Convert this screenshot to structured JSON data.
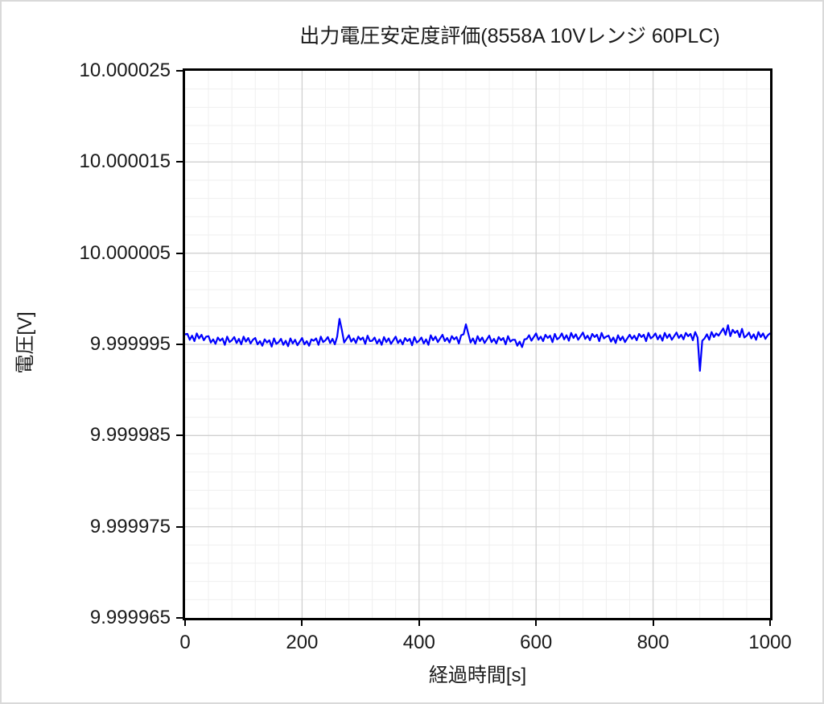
{
  "chart_data": {
    "type": "line",
    "title": "出力電圧安定度評価(8558A 10Vレンジ 60PLC)",
    "xlabel": "経過時間[s]",
    "ylabel": "電圧[V]",
    "xlim_s": [
      0,
      1000
    ],
    "ylim_uV": [
      -35,
      25
    ],
    "ylim_volts": [
      9.999965,
      10.000025
    ],
    "x_ticks": [
      {
        "s": 0,
        "label": "0"
      },
      {
        "s": 200,
        "label": "200"
      },
      {
        "s": 400,
        "label": "400"
      },
      {
        "s": 600,
        "label": "600"
      },
      {
        "s": 800,
        "label": "800"
      },
      {
        "s": 1000,
        "label": "1000"
      }
    ],
    "y_ticks": [
      {
        "uV": 25,
        "label": "10.000025"
      },
      {
        "uV": 15,
        "label": "10.000015"
      },
      {
        "uV": 5,
        "label": "10.000005"
      },
      {
        "uV": -5,
        "label": "9.999995"
      },
      {
        "uV": -15,
        "label": "9.999985"
      },
      {
        "uV": -25,
        "label": "9.999975"
      },
      {
        "uV": -35,
        "label": "9.999965"
      }
    ],
    "x_minor_step_s": 40,
    "y_minor_step_uV": 2,
    "grid": {
      "major": true,
      "minor": true
    },
    "legend": "none",
    "series": [
      {
        "name": "電圧",
        "color": "#0000FF",
        "note": "voltage_V = 10 + offset_uV * 1e-6, sampled every x_step_s seconds",
        "x_step_s": 4,
        "offsets_uV": [
          -3.9,
          -3.85,
          -4.5,
          -4.05,
          -4.65,
          -3.8,
          -4.35,
          -3.95,
          -4.55,
          -4.15,
          -4.1,
          -4.8,
          -4.45,
          -4.95,
          -4.25,
          -4.6,
          -4.35,
          -5.05,
          -4.15,
          -4.75,
          -4.55,
          -4.2,
          -4.85,
          -4.4,
          -5.0,
          -4.15,
          -4.7,
          -4.3,
          -4.9,
          -4.5,
          -4.3,
          -5.0,
          -4.65,
          -5.15,
          -4.45,
          -4.8,
          -4.55,
          -5.25,
          -4.35,
          -4.95,
          -4.75,
          -4.4,
          -5.05,
          -4.6,
          -5.2,
          -4.35,
          -4.9,
          -4.5,
          -5.1,
          -4.7,
          -4.3,
          -5.0,
          -4.65,
          -5.15,
          -4.45,
          -4.6,
          -4.35,
          -5.05,
          -4.15,
          -4.75,
          -4.55,
          -4.2,
          -4.85,
          -4.4,
          -5.0,
          -4.15,
          -2.2,
          -3.4,
          -4.8,
          -4.4,
          -4.0,
          -4.7,
          -4.35,
          -4.85,
          -4.15,
          -4.5,
          -4.25,
          -4.95,
          -4.05,
          -4.65,
          -4.6,
          -4.25,
          -4.9,
          -4.45,
          -5.05,
          -4.2,
          -4.75,
          -4.35,
          -4.95,
          -4.55,
          -4.15,
          -4.85,
          -4.5,
          -5.0,
          -4.3,
          -4.65,
          -4.4,
          -5.1,
          -4.2,
          -4.8,
          -4.6,
          -4.25,
          -4.9,
          -4.45,
          -5.05,
          -4.0,
          -4.55,
          -4.15,
          -4.75,
          -4.35,
          -3.95,
          -4.65,
          -4.3,
          -4.8,
          -4.1,
          -4.45,
          -4.2,
          -4.9,
          -4.0,
          -3.9,
          -2.8,
          -3.8,
          -4.8,
          -4.35,
          -4.95,
          -4.1,
          -4.65,
          -4.25,
          -4.85,
          -4.45,
          -4.05,
          -4.75,
          -4.4,
          -4.9,
          -4.2,
          -4.55,
          -4.3,
          -5.0,
          -4.1,
          -4.7,
          -4.5,
          -4.5,
          -5.15,
          -4.7,
          -5.3,
          -4.45,
          -4.4,
          -4.0,
          -4.6,
          -4.2,
          -3.8,
          -4.5,
          -4.15,
          -4.65,
          -3.95,
          -4.3,
          -4.05,
          -4.75,
          -3.85,
          -4.45,
          -4.25,
          -3.8,
          -4.45,
          -4.0,
          -4.6,
          -3.75,
          -4.3,
          -3.9,
          -4.5,
          -4.1,
          -3.7,
          -4.4,
          -4.05,
          -4.55,
          -3.85,
          -4.2,
          -3.95,
          -4.65,
          -3.75,
          -4.35,
          -4.15,
          -4.05,
          -4.7,
          -4.25,
          -4.85,
          -4.0,
          -4.55,
          -4.15,
          -4.75,
          -4.35,
          -3.95,
          -4.4,
          -4.05,
          -4.55,
          -3.85,
          -4.2,
          -3.95,
          -4.65,
          -3.75,
          -4.35,
          -4.15,
          -3.8,
          -4.45,
          -4.0,
          -4.6,
          -3.75,
          -4.3,
          -3.9,
          -4.5,
          -4.1,
          -3.7,
          -4.3,
          -3.95,
          -4.45,
          -3.75,
          -4.1,
          -3.85,
          -4.55,
          -3.65,
          -4.25,
          -7.9,
          -4.6,
          -4.35,
          -3.9,
          -4.5,
          -3.65,
          -4.2,
          -3.8,
          -4.05,
          -3.65,
          -3.25,
          -3.95,
          -2.9,
          -4.1,
          -3.4,
          -3.75,
          -3.5,
          -4.2,
          -3.3,
          -4.25,
          -4.05,
          -3.7,
          -4.35,
          -3.9,
          -4.5,
          -3.65,
          -4.2,
          -3.8,
          -4.4,
          -4.0,
          -3.8
        ]
      }
    ]
  },
  "colors": {
    "series_blue": "#0000FF",
    "axis_black": "#000000",
    "grid_major": "#D0D0D0",
    "grid_minor": "#EFEFEF",
    "text": "#1A1A1A",
    "chart_border": "#D9D9D9",
    "background": "#FFFFFF"
  }
}
